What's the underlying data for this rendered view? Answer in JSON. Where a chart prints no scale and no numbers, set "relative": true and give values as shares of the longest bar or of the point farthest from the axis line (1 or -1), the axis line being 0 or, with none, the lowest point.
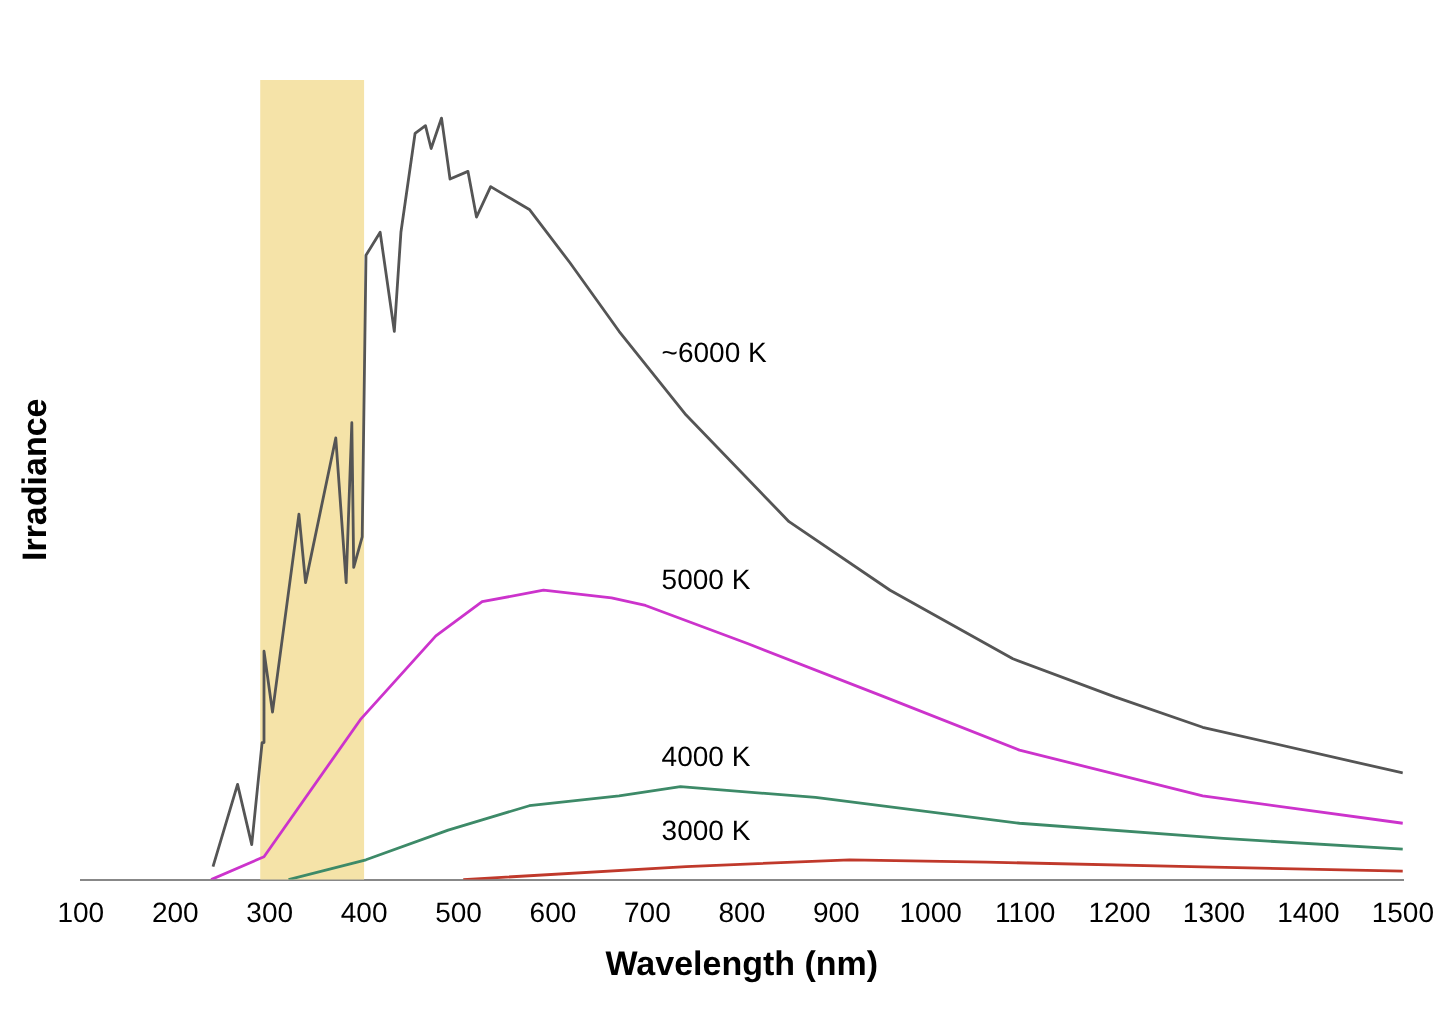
{
  "chart_data": {
    "type": "line",
    "xlabel": "Wavelength (nm)",
    "ylabel": "Irradiance",
    "relative": true,
    "xlim": [
      100,
      1500
    ],
    "xticks": [
      100,
      200,
      300,
      400,
      500,
      600,
      700,
      800,
      900,
      1000,
      1100,
      1200,
      1300,
      1400,
      1500
    ],
    "grid": false,
    "legend": false,
    "marker": "none",
    "line_style": "solid",
    "bands": [
      {
        "axis": "x",
        "from": 290,
        "to": 400,
        "color": "#f5e3a8"
      }
    ],
    "series": [
      {
        "name": "~6000 K",
        "color": "#555555",
        "x": [
          240,
          266,
          281,
          292,
          294,
          303,
          331,
          338,
          370,
          381,
          387,
          389,
          398,
          402,
          417,
          432,
          439,
          454,
          465,
          471,
          482,
          491,
          510,
          519,
          534,
          575,
          618,
          670,
          741,
          850,
          957,
          1087,
          1195,
          1288,
          1500
        ],
        "values": [
          0.017,
          0.125,
          0.046,
          0.18,
          0.3,
          0.22,
          0.48,
          0.39,
          0.58,
          0.39,
          0.6,
          0.41,
          0.45,
          0.82,
          0.85,
          0.72,
          0.85,
          0.98,
          0.99,
          0.96,
          1,
          0.92,
          0.93,
          0.87,
          0.91,
          0.88,
          0.81,
          0.72,
          0.61,
          0.47,
          0.38,
          0.29,
          0.24,
          0.2,
          0.14
        ]
      },
      {
        "name": "5000 K",
        "color": "#cc33cc",
        "x": [
          238,
          294,
          396,
          476,
          525,
          590,
          662,
          698,
          806,
          951,
          1094,
          1288,
          1500
        ],
        "values": [
          0,
          0.03,
          0.21,
          0.32,
          0.365,
          0.38,
          0.37,
          0.36,
          0.31,
          0.24,
          0.17,
          0.11,
          0.074
        ]
      },
      {
        "name": "4000 K",
        "color": "#3d8a68",
        "x": [
          320,
          402,
          489,
          575,
          670,
          735,
          878,
          1094,
          1310,
          1500
        ],
        "values": [
          0,
          0.026,
          0.065,
          0.097,
          0.11,
          0.122,
          0.108,
          0.074,
          0.054,
          0.04
        ]
      },
      {
        "name": "3000 K",
        "color": "#c0392b",
        "x": [
          505,
          741,
          914,
          1059,
          1275,
          1500
        ],
        "values": [
          0,
          0.017,
          0.026,
          0.023,
          0.017,
          0.011
        ]
      }
    ]
  }
}
